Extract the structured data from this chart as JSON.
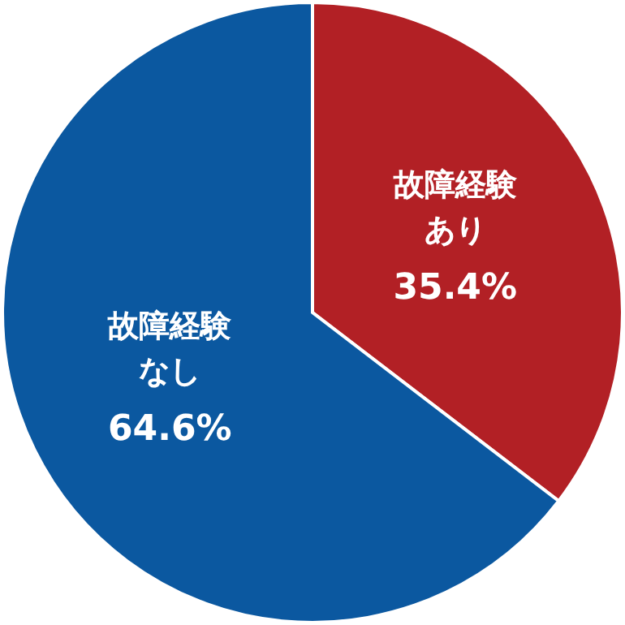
{
  "chart_data": {
    "type": "pie",
    "categories": [
      "故障経験あり",
      "故障経験なし"
    ],
    "values": [
      35.4,
      64.6
    ],
    "colors": [
      "#b22025",
      "#0b58a0"
    ],
    "value_labels": [
      "35.4%",
      "64.6%"
    ]
  }
}
